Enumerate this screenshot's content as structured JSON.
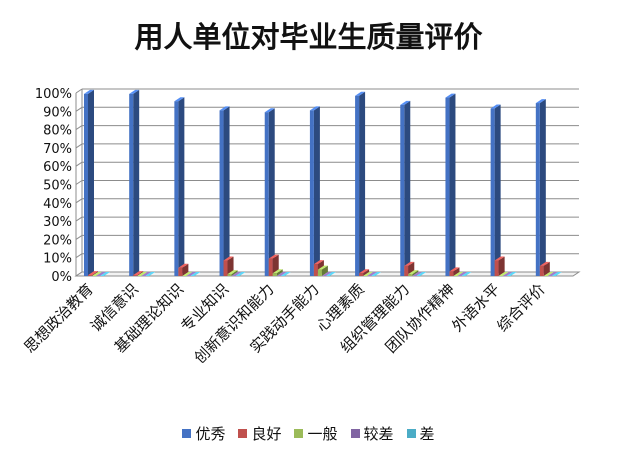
{
  "chart_data": {
    "type": "bar",
    "title": "用人单位对毕业生质量评价",
    "xlabel": "",
    "ylabel": "",
    "ylim": [
      0,
      100
    ],
    "y_ticks": [
      "100%",
      "90%",
      "80%",
      "70%",
      "60%",
      "50%",
      "40%",
      "30%",
      "20%",
      "10%",
      "0%"
    ],
    "grid": true,
    "legend_position": "bottom",
    "style": "3d-columns",
    "categories": [
      "思想政治教育",
      "诚信意识",
      "基础理论知识",
      "专业知识",
      "创新意识和能力",
      "实践动手能力",
      "心理素质",
      "组织管理能力",
      "团队协作精神",
      "外语水平",
      "综合评价"
    ],
    "series": [
      {
        "name": "优秀",
        "color": "#4472C4",
        "values": [
          99.5,
          99.5,
          95.5,
          90.5,
          89.5,
          90.5,
          98.5,
          93.5,
          97.5,
          91.5,
          94.5
        ]
      },
      {
        "name": "良好",
        "color": "#C0504D",
        "values": [
          0.5,
          0.5,
          4.5,
          8.5,
          9.5,
          6.5,
          1.5,
          5.5,
          2.5,
          8.5,
          5.5
        ]
      },
      {
        "name": "一般",
        "color": "#9BBB59",
        "values": [
          0,
          0,
          0,
          1,
          1.5,
          3.5,
          0,
          1,
          0,
          0,
          0
        ]
      },
      {
        "name": "较差",
        "color": "#8064A2",
        "values": [
          0,
          0,
          0,
          0,
          0,
          0,
          0,
          0,
          0,
          0,
          0
        ]
      },
      {
        "name": "差",
        "color": "#4BACC6",
        "values": [
          0,
          0,
          0,
          0,
          0,
          0,
          0,
          0,
          0,
          0,
          0
        ]
      }
    ]
  }
}
